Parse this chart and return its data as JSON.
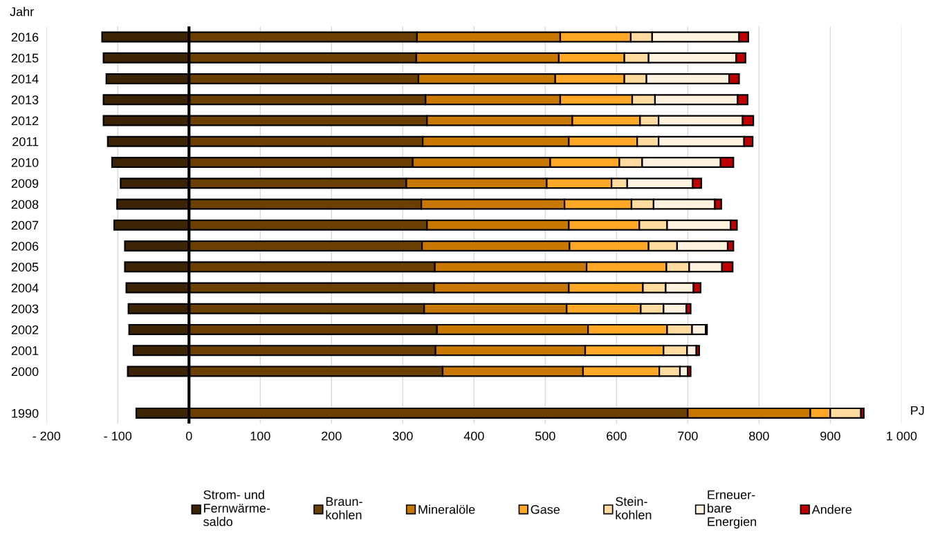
{
  "chart_data": {
    "type": "bar",
    "orientation": "horizontal",
    "stacked": true,
    "ylabel": "Jahr",
    "xlabel": "PJ",
    "categories": [
      "2016",
      "2015",
      "2014",
      "2013",
      "2012",
      "2011",
      "2010",
      "2009",
      "2008",
      "2007",
      "2006",
      "2005",
      "2004",
      "2003",
      "2002",
      "2001",
      "2000",
      null,
      "1990"
    ],
    "series": [
      {
        "name": "Strom- und\nFernwärme-\nsaldo",
        "color": "#3d2305",
        "values": [
          -122,
          -120,
          -116,
          -120,
          -120,
          -114,
          -108,
          -96,
          -101,
          -105,
          -90,
          -90,
          -88,
          -85,
          -84,
          -78,
          -86,
          null,
          -74
        ]
      },
      {
        "name": "Braun-\nkohlen",
        "color": "#6b3e02",
        "values": [
          320,
          319,
          322,
          332,
          334,
          328,
          314,
          305,
          326,
          334,
          327,
          345,
          344,
          330,
          348,
          346,
          356,
          null,
          700
        ]
      },
      {
        "name": "Mineralöle",
        "color": "#c87800",
        "values": [
          201,
          200,
          192,
          189,
          204,
          205,
          193,
          197,
          201,
          199,
          207,
          213,
          189,
          200,
          212,
          210,
          197,
          null,
          172
        ]
      },
      {
        "name": "Gase",
        "color": "#ffa726",
        "values": [
          99,
          92,
          97,
          101,
          95,
          96,
          97,
          91,
          94,
          99,
          111,
          112,
          104,
          104,
          111,
          110,
          107,
          null,
          28
        ]
      },
      {
        "name": "Stein-\nkohlen",
        "color": "#ffdba0",
        "values": [
          30,
          34,
          31,
          32,
          26,
          30,
          32,
          22,
          31,
          39,
          40,
          32,
          32,
          32,
          35,
          33,
          29,
          null,
          43
        ]
      },
      {
        "name": "Erneuer-\nbare\nEnergien",
        "color": "#fff3e0",
        "values": [
          122,
          123,
          116,
          116,
          118,
          120,
          110,
          92,
          86,
          89,
          71,
          46,
          39,
          32,
          19,
          13,
          11,
          null,
          null
        ]
      },
      {
        "name": "Andere",
        "color": "#c00000",
        "values": [
          13,
          13,
          14,
          14,
          15,
          12,
          18,
          12,
          9,
          9,
          8,
          15,
          10,
          6,
          2,
          4,
          4,
          null,
          4
        ]
      }
    ],
    "xlim": [
      -200,
      1000
    ],
    "xticks": [
      {
        "value": -200,
        "label": "- 200"
      },
      {
        "value": -100,
        "label": "- 100"
      },
      0,
      100,
      200,
      300,
      400,
      500,
      600,
      700,
      800,
      900,
      {
        "value": 1000,
        "label": "1 000"
      }
    ],
    "grid": "x",
    "legend": "bottom",
    "ref_lines": [
      {
        "axis": "x",
        "value": 0,
        "color": "#000000"
      }
    ]
  }
}
